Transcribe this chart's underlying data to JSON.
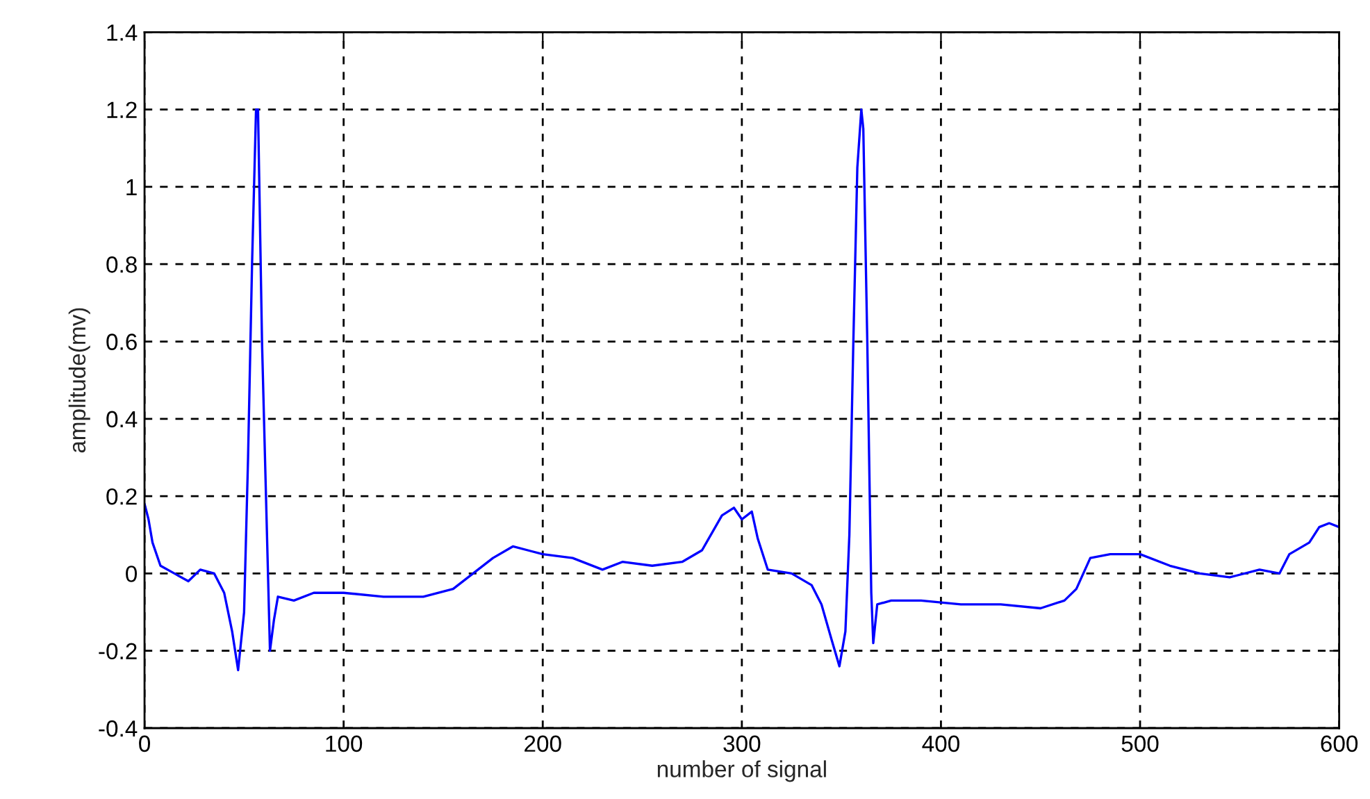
{
  "chart_data": {
    "type": "line",
    "xlabel": "number of signal",
    "ylabel": "amplitude(mv)",
    "xlim": [
      0,
      600
    ],
    "ylim": [
      -0.4,
      1.4
    ],
    "xticks": [
      0,
      100,
      200,
      300,
      400,
      500,
      600
    ],
    "yticks": [
      -0.4,
      -0.2,
      0,
      0.2,
      0.4,
      0.6,
      0.8,
      1,
      1.2,
      1.4
    ],
    "grid": true,
    "line_style": "solid",
    "marker": "none",
    "series": [
      {
        "color": "#0000ff",
        "x": [
          0,
          2,
          4,
          8,
          15,
          22,
          28,
          35,
          40,
          44,
          47,
          50,
          52,
          54,
          56,
          57,
          59,
          61,
          63,
          65,
          67,
          75,
          85,
          100,
          120,
          140,
          155,
          165,
          175,
          185,
          200,
          215,
          230,
          240,
          255,
          270,
          280,
          290,
          296,
          300,
          305,
          308,
          313,
          325,
          335,
          340,
          345,
          349,
          352,
          354,
          356,
          358,
          360,
          361,
          363,
          365,
          366,
          368,
          375,
          390,
          410,
          430,
          450,
          462,
          468,
          475,
          485,
          500,
          515,
          530,
          545,
          560,
          570,
          575,
          585,
          590,
          595,
          600
        ],
        "values": [
          0.18,
          0.14,
          0.08,
          0.02,
          0.0,
          -0.02,
          0.01,
          0.0,
          -0.05,
          -0.15,
          -0.25,
          -0.1,
          0.3,
          0.8,
          1.2,
          1.2,
          0.6,
          0.2,
          -0.2,
          -0.12,
          -0.06,
          -0.07,
          -0.05,
          -0.05,
          -0.06,
          -0.06,
          -0.04,
          0.0,
          0.04,
          0.07,
          0.05,
          0.04,
          0.01,
          0.03,
          0.02,
          0.03,
          0.06,
          0.15,
          0.17,
          0.14,
          0.16,
          0.09,
          0.01,
          0.0,
          -0.03,
          -0.08,
          -0.17,
          -0.24,
          -0.15,
          0.1,
          0.6,
          1.05,
          1.2,
          1.15,
          0.6,
          -0.05,
          -0.18,
          -0.08,
          -0.07,
          -0.07,
          -0.08,
          -0.08,
          -0.09,
          -0.07,
          -0.04,
          0.04,
          0.05,
          0.05,
          0.02,
          0.0,
          -0.01,
          0.01,
          0.0,
          0.05,
          0.08,
          0.12,
          0.13,
          0.12
        ]
      }
    ]
  }
}
